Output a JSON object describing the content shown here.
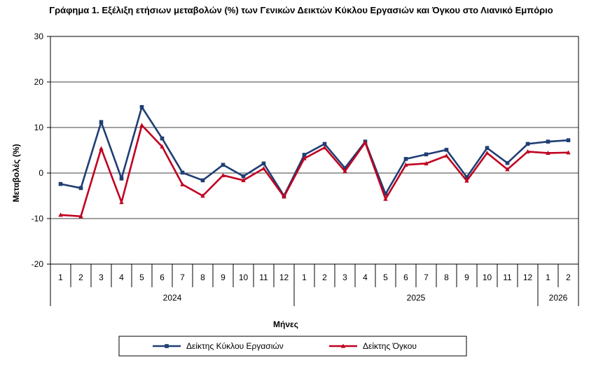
{
  "chart_data": {
    "type": "line",
    "title": "Γράφημα 1. Εξέλιξη ετήσιων μεταβολών (%) των Γενικών Δεικτών Κύκλου Εργασιών και Όγκου στο Λιανικό Εμπόριο",
    "xlabel": "Μήνες",
    "ylabel": "Μεταβολές  (%)",
    "ylim": [
      -20,
      30
    ],
    "yticks": [
      "-20",
      "-10",
      "0",
      "10",
      "20",
      "30"
    ],
    "grid": true,
    "legend_position": "bottom",
    "categories": [
      "1",
      "2",
      "3",
      "4",
      "5",
      "6",
      "7",
      "8",
      "9",
      "10",
      "11",
      "12",
      "1",
      "2",
      "3",
      "4",
      "5",
      "6",
      "7",
      "8",
      "9",
      "10",
      "11",
      "12",
      "1",
      "2"
    ],
    "years": [
      {
        "label": "2024",
        "start": 0,
        "end": 11
      },
      {
        "label": "2025",
        "start": 12,
        "end": 23
      },
      {
        "label": "2026",
        "start": 24,
        "end": 25
      }
    ],
    "series": [
      {
        "name": "Δείκτης Κύκλου Εργασιών",
        "color": "#1F3E74",
        "marker": "square",
        "values": [
          -2.4,
          -3.3,
          11.2,
          -1.2,
          14.5,
          7.6,
          0.1,
          -1.6,
          1.8,
          -0.7,
          2.1,
          -5.0,
          4.0,
          6.4,
          1.1,
          6.9,
          -4.6,
          3.1,
          4.1,
          5.1,
          -0.9,
          5.5,
          2.2,
          6.4,
          6.9,
          7.2
        ]
      },
      {
        "name": "Δείκτης Όγκου",
        "color": "#C0001F",
        "marker": "triangle",
        "values": [
          -9.2,
          -9.5,
          5.4,
          -6.4,
          10.5,
          5.8,
          -2.5,
          -5.0,
          -0.5,
          -1.6,
          1.0,
          -5.2,
          3.2,
          5.6,
          0.4,
          6.7,
          -5.7,
          1.8,
          2.1,
          3.8,
          -1.7,
          4.4,
          0.8,
          4.7,
          4.4,
          4.5
        ]
      }
    ]
  }
}
